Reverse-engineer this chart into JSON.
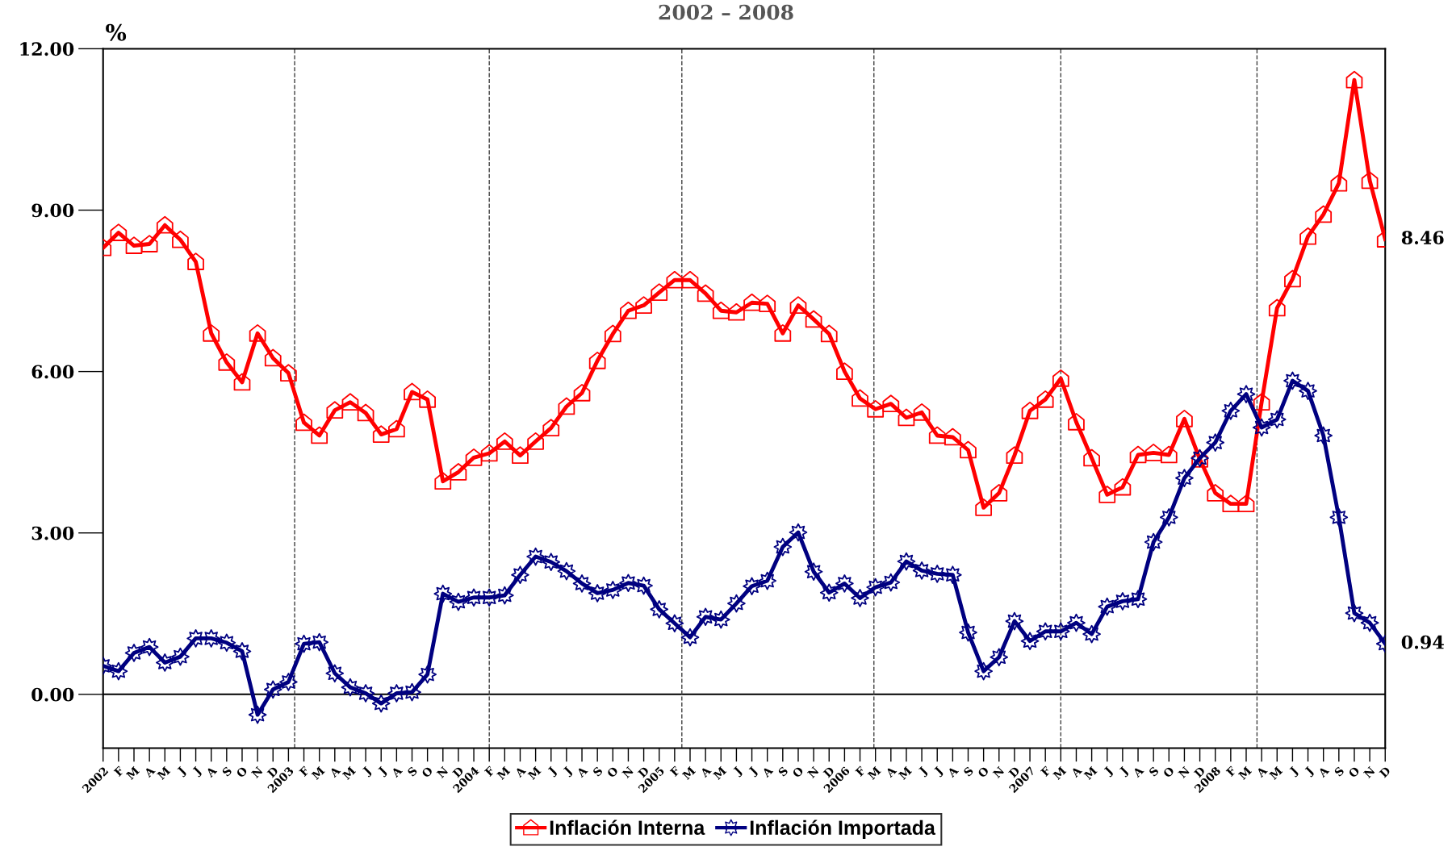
{
  "chart_data": {
    "type": "line",
    "title": "2002 – 2008",
    "ylabel": "%",
    "x": [
      "2002-01",
      "2002-02",
      "2002-03",
      "2002-04",
      "2002-05",
      "2002-06",
      "2002-07",
      "2002-08",
      "2002-09",
      "2002-10",
      "2002-11",
      "2002-12",
      "2003-01",
      "2003-02",
      "2003-03",
      "2003-04",
      "2003-05",
      "2003-06",
      "2003-07",
      "2003-08",
      "2003-09",
      "2003-10",
      "2003-11",
      "2003-12",
      "2004-01",
      "2004-02",
      "2004-03",
      "2004-04",
      "2004-05",
      "2004-06",
      "2004-07",
      "2004-08",
      "2004-09",
      "2004-10",
      "2004-11",
      "2004-12",
      "2005-01",
      "2005-02",
      "2005-03",
      "2005-04",
      "2005-05",
      "2005-06",
      "2005-07",
      "2005-08",
      "2005-09",
      "2005-10",
      "2005-11",
      "2005-12",
      "2006-01",
      "2006-02",
      "2006-03",
      "2006-04",
      "2006-05",
      "2006-06",
      "2006-07",
      "2006-08",
      "2006-09",
      "2006-10",
      "2006-11",
      "2006-12",
      "2007-01",
      "2007-02",
      "2007-03",
      "2007-04",
      "2007-05",
      "2007-06",
      "2007-07",
      "2007-08",
      "2007-09",
      "2007-10",
      "2007-11",
      "2007-12",
      "2008-01",
      "2008-02",
      "2008-03",
      "2008-04",
      "2008-05",
      "2008-06",
      "2008-07",
      "2008-08",
      "2008-09",
      "2008-10",
      "2008-11",
      "2008-12"
    ],
    "series": [
      {
        "name": "Inflación Interna",
        "color": "#ff0000",
        "marker": "square",
        "values": [
          8.3,
          8.58,
          8.34,
          8.37,
          8.72,
          8.45,
          8.04,
          6.71,
          6.17,
          5.8,
          6.71,
          6.25,
          5.97,
          5.05,
          4.81,
          5.28,
          5.43,
          5.23,
          4.83,
          4.93,
          5.62,
          5.48,
          3.96,
          4.13,
          4.4,
          4.48,
          4.7,
          4.44,
          4.7,
          4.95,
          5.35,
          5.6,
          6.2,
          6.7,
          7.13,
          7.23,
          7.47,
          7.7,
          7.7,
          7.45,
          7.13,
          7.1,
          7.28,
          7.26,
          6.71,
          7.23,
          6.97,
          6.7,
          6.0,
          5.5,
          5.3,
          5.4,
          5.14,
          5.24,
          4.81,
          4.78,
          4.54,
          3.47,
          3.74,
          4.44,
          5.27,
          5.48,
          5.87,
          5.06,
          4.39,
          3.71,
          3.85,
          4.45,
          4.49,
          4.45,
          5.12,
          4.37,
          3.74,
          3.54,
          3.54,
          5.43,
          7.18,
          7.72,
          8.51,
          8.92,
          9.5,
          11.42,
          9.55,
          8.46
        ],
        "value_labels": [
          null,
          null,
          null,
          null,
          null,
          null,
          null,
          null,
          null,
          null,
          null,
          null,
          null,
          null,
          null,
          null,
          null,
          null,
          null,
          null,
          null,
          null,
          null,
          null,
          null,
          null,
          null,
          null,
          null,
          null,
          null,
          null,
          null,
          null,
          null,
          null,
          null,
          null,
          null,
          null,
          null,
          null,
          null,
          null,
          null,
          null,
          null,
          null,
          null,
          null,
          null,
          null,
          null,
          null,
          null,
          null,
          null,
          null,
          null,
          null,
          null,
          null,
          null,
          null,
          null,
          null,
          null,
          null,
          null,
          null,
          null,
          null,
          null,
          null,
          null,
          null,
          null,
          null,
          null,
          null,
          null,
          null,
          null,
          "8.46"
        ]
      },
      {
        "name": "Inflación Importada",
        "color": "#000080",
        "marker": "circle",
        "values": [
          0.53,
          0.43,
          0.77,
          0.88,
          0.59,
          0.7,
          1.04,
          1.04,
          0.96,
          0.8,
          -0.38,
          0.09,
          0.23,
          0.94,
          0.97,
          0.39,
          0.13,
          0.02,
          -0.17,
          0.02,
          0.04,
          0.37,
          1.87,
          1.72,
          1.8,
          1.8,
          1.84,
          2.22,
          2.56,
          2.46,
          2.29,
          2.06,
          1.88,
          1.94,
          2.07,
          2.02,
          1.58,
          1.32,
          1.06,
          1.44,
          1.39,
          1.69,
          2.01,
          2.11,
          2.74,
          3.01,
          2.28,
          1.89,
          2.06,
          1.79,
          1.99,
          2.08,
          2.47,
          2.3,
          2.24,
          2.22,
          1.15,
          0.43,
          0.69,
          1.36,
          0.99,
          1.17,
          1.17,
          1.33,
          1.12,
          1.63,
          1.73,
          1.77,
          2.83,
          3.29,
          4.02,
          4.39,
          4.68,
          5.27,
          5.58,
          4.96,
          5.11,
          5.83,
          5.64,
          4.81,
          3.29,
          1.51,
          1.33,
          0.94
        ],
        "value_labels": [
          null,
          null,
          null,
          null,
          null,
          null,
          null,
          null,
          null,
          null,
          null,
          null,
          null,
          null,
          null,
          null,
          null,
          null,
          null,
          null,
          null,
          null,
          null,
          null,
          null,
          null,
          null,
          null,
          null,
          null,
          null,
          null,
          null,
          null,
          null,
          null,
          null,
          null,
          null,
          null,
          null,
          null,
          null,
          null,
          null,
          null,
          null,
          null,
          null,
          null,
          null,
          null,
          null,
          null,
          null,
          null,
          null,
          null,
          null,
          null,
          null,
          null,
          null,
          null,
          null,
          null,
          null,
          null,
          null,
          null,
          null,
          null,
          null,
          null,
          null,
          null,
          null,
          null,
          null,
          null,
          null,
          null,
          null,
          "0.94"
        ]
      }
    ],
    "xlim": [
      "2002-01",
      "2008-12"
    ],
    "xticks": [
      {
        "value": "2002-01",
        "label": "2002"
      },
      {
        "value": "2002-02",
        "label": "F"
      },
      {
        "value": "2002-03",
        "label": "M"
      },
      {
        "value": "2002-04",
        "label": "A"
      },
      {
        "value": "2002-05",
        "label": "M"
      },
      {
        "value": "2002-06",
        "label": "J"
      },
      {
        "value": "2002-07",
        "label": "J"
      },
      {
        "value": "2002-08",
        "label": "A"
      },
      {
        "value": "2002-09",
        "label": "S"
      },
      {
        "value": "2002-10",
        "label": "O"
      },
      {
        "value": "2002-11",
        "label": "N"
      },
      {
        "value": "2002-12",
        "label": "D"
      },
      {
        "value": "2003-01",
        "label": "2003"
      },
      {
        "value": "2003-02",
        "label": "F"
      },
      {
        "value": "2003-03",
        "label": "M"
      },
      {
        "value": "2003-04",
        "label": "A"
      },
      {
        "value": "2003-05",
        "label": "M"
      },
      {
        "value": "2003-06",
        "label": "J"
      },
      {
        "value": "2003-07",
        "label": "J"
      },
      {
        "value": "2003-08",
        "label": "A"
      },
      {
        "value": "2003-09",
        "label": "S"
      },
      {
        "value": "2003-10",
        "label": "O"
      },
      {
        "value": "2003-11",
        "label": "N"
      },
      {
        "value": "2003-12",
        "label": "D"
      },
      {
        "value": "2004-01",
        "label": "2004"
      },
      {
        "value": "2004-02",
        "label": "F"
      },
      {
        "value": "2004-03",
        "label": "M"
      },
      {
        "value": "2004-04",
        "label": "A"
      },
      {
        "value": "2004-05",
        "label": "M"
      },
      {
        "value": "2004-06",
        "label": "J"
      },
      {
        "value": "2004-07",
        "label": "J"
      },
      {
        "value": "2004-08",
        "label": "A"
      },
      {
        "value": "2004-09",
        "label": "S"
      },
      {
        "value": "2004-10",
        "label": "O"
      },
      {
        "value": "2004-11",
        "label": "N"
      },
      {
        "value": "2004-12",
        "label": "D"
      },
      {
        "value": "2005-01",
        "label": "2005"
      },
      {
        "value": "2005-02",
        "label": "F"
      },
      {
        "value": "2005-03",
        "label": "M"
      },
      {
        "value": "2005-04",
        "label": "A"
      },
      {
        "value": "2005-05",
        "label": "M"
      },
      {
        "value": "2005-06",
        "label": "J"
      },
      {
        "value": "2005-07",
        "label": "J"
      },
      {
        "value": "2005-08",
        "label": "A"
      },
      {
        "value": "2005-09",
        "label": "S"
      },
      {
        "value": "2005-10",
        "label": "O"
      },
      {
        "value": "2005-11",
        "label": "N"
      },
      {
        "value": "2005-12",
        "label": "D"
      },
      {
        "value": "2006-01",
        "label": "2006"
      },
      {
        "value": "2006-02",
        "label": "F"
      },
      {
        "value": "2006-03",
        "label": "M"
      },
      {
        "value": "2006-04",
        "label": "A"
      },
      {
        "value": "2006-05",
        "label": "M"
      },
      {
        "value": "2006-06",
        "label": "J"
      },
      {
        "value": "2006-07",
        "label": "J"
      },
      {
        "value": "2006-08",
        "label": "A"
      },
      {
        "value": "2006-09",
        "label": "S"
      },
      {
        "value": "2006-10",
        "label": "O"
      },
      {
        "value": "2006-11",
        "label": "N"
      },
      {
        "value": "2006-12",
        "label": "D"
      },
      {
        "value": "2007-01",
        "label": "2007"
      },
      {
        "value": "2007-02",
        "label": "F"
      },
      {
        "value": "2007-03",
        "label": "M"
      },
      {
        "value": "2007-04",
        "label": "A"
      },
      {
        "value": "2007-05",
        "label": "M"
      },
      {
        "value": "2007-06",
        "label": "J"
      },
      {
        "value": "2007-07",
        "label": "J"
      },
      {
        "value": "2007-08",
        "label": "A"
      },
      {
        "value": "2007-09",
        "label": "S"
      },
      {
        "value": "2007-10",
        "label": "O"
      },
      {
        "value": "2007-11",
        "label": "N"
      },
      {
        "value": "2007-12",
        "label": "D"
      },
      {
        "value": "2008-01",
        "label": "2008"
      },
      {
        "value": "2008-02",
        "label": "F"
      },
      {
        "value": "2008-03",
        "label": "M"
      },
      {
        "value": "2008-04",
        "label": "A"
      },
      {
        "value": "2008-05",
        "label": "M"
      },
      {
        "value": "2008-06",
        "label": "J"
      },
      {
        "value": "2008-07",
        "label": "J"
      },
      {
        "value": "2008-08",
        "label": "A"
      },
      {
        "value": "2008-09",
        "label": "S"
      },
      {
        "value": "2008-10",
        "label": "O"
      },
      {
        "value": "2008-11",
        "label": "N"
      },
      {
        "value": "2008-12",
        "label": "D"
      }
    ],
    "ylim": [
      -1.0,
      12.0
    ],
    "yticks": [
      {
        "value": 0,
        "label": "0.00"
      },
      {
        "value": 3,
        "label": "3.00"
      },
      {
        "value": 6,
        "label": "6.00"
      },
      {
        "value": 9,
        "label": "9.00"
      },
      {
        "value": 12,
        "label": "12.00"
      }
    ],
    "ref_lines": [
      {
        "axis": "y",
        "value": 0,
        "color": "#000000",
        "line_style": "solid"
      },
      {
        "axis": "x",
        "value": "2003-01-13",
        "color": "#404040",
        "line_style": "dashed"
      },
      {
        "axis": "x",
        "value": "2004-02-01",
        "color": "#404040",
        "line_style": "dashed"
      },
      {
        "axis": "x",
        "value": "2005-02-15",
        "color": "#404040",
        "line_style": "dashed"
      },
      {
        "axis": "x",
        "value": "2006-02-28",
        "color": "#404040",
        "line_style": "dashed"
      },
      {
        "axis": "x",
        "value": "2007-03-01",
        "color": "#404040",
        "line_style": "dashed"
      },
      {
        "axis": "x",
        "value": "2008-03-22",
        "color": "#404040",
        "line_style": "dashed"
      }
    ],
    "grid": false,
    "legend": "bottom",
    "line_style": "solid"
  }
}
